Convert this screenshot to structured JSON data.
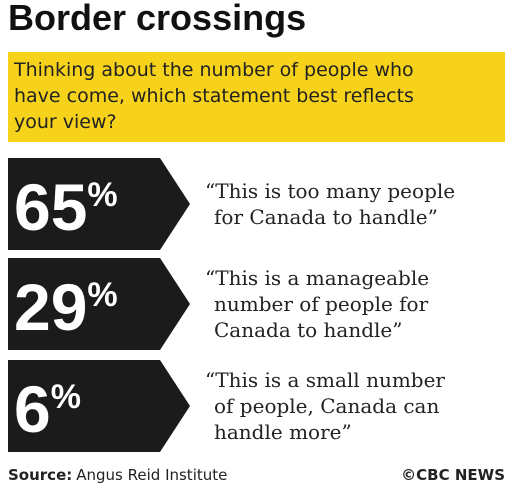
{
  "title": "Border crossings",
  "question": [
    "Thinking about the number of people who",
    "have come, which statement best reflects",
    "your view?"
  ],
  "items": [
    {
      "value": 65,
      "unit": "%",
      "quote": [
        "“This is too many people",
        "for Canada to handle”"
      ]
    },
    {
      "value": 29,
      "unit": "%",
      "quote": [
        "“This is a manageable",
        "number of people for",
        "Canada to handle”"
      ]
    },
    {
      "value": 6,
      "unit": "%",
      "quote": [
        "“This is a small number",
        "of people, Canada can",
        "handle more”"
      ]
    }
  ],
  "source": {
    "label": "Source:",
    "text": "Angus Reid Institute"
  },
  "credit": "©CBC NEWS"
}
